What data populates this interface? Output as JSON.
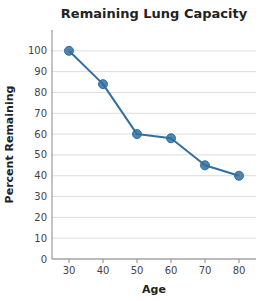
{
  "chart_data": {
    "type": "line",
    "title": "Remaining Lung Capacity",
    "xlabel": "Age",
    "ylabel": "Percent Remaining",
    "x": [
      30,
      40,
      50,
      60,
      70,
      80
    ],
    "values": [
      100,
      84,
      60,
      58,
      45,
      40
    ],
    "color": "#3070A0",
    "marker": "circle",
    "xlim": [
      25,
      85
    ],
    "ylim": [
      0,
      110
    ],
    "xticks": [
      30,
      40,
      50,
      60,
      70,
      80
    ],
    "yticks": [
      0,
      10,
      20,
      30,
      40,
      50,
      60,
      70,
      80,
      90,
      100
    ],
    "grid": true
  }
}
